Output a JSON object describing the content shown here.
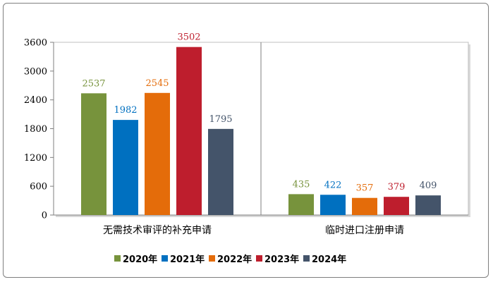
{
  "chart_data": {
    "type": "bar",
    "categories": [
      "无需技术审评的补充申请",
      "临时进口注册申请"
    ],
    "series": [
      {
        "name": "2020年",
        "values": [
          2537,
          435
        ],
        "color": "#77933c"
      },
      {
        "name": "2021年",
        "values": [
          1982,
          422
        ],
        "color": "#0070c0"
      },
      {
        "name": "2022年",
        "values": [
          2545,
          357
        ],
        "color": "#e46c0a"
      },
      {
        "name": "2023年",
        "values": [
          3502,
          379
        ],
        "color": "#be1e2d"
      },
      {
        "name": "2024年",
        "values": [
          1795,
          409
        ],
        "color": "#44546a"
      }
    ],
    "ylim": [
      0,
      3600
    ],
    "yticks": [
      0,
      600,
      1200,
      1800,
      2400,
      3000,
      3600
    ],
    "ytick_labels": [
      "0",
      "600",
      "1200",
      "1800",
      "2400",
      "3000",
      "3600"
    ],
    "grid": false,
    "legend": "bottom",
    "title": "",
    "xlabel": "",
    "ylabel": ""
  }
}
